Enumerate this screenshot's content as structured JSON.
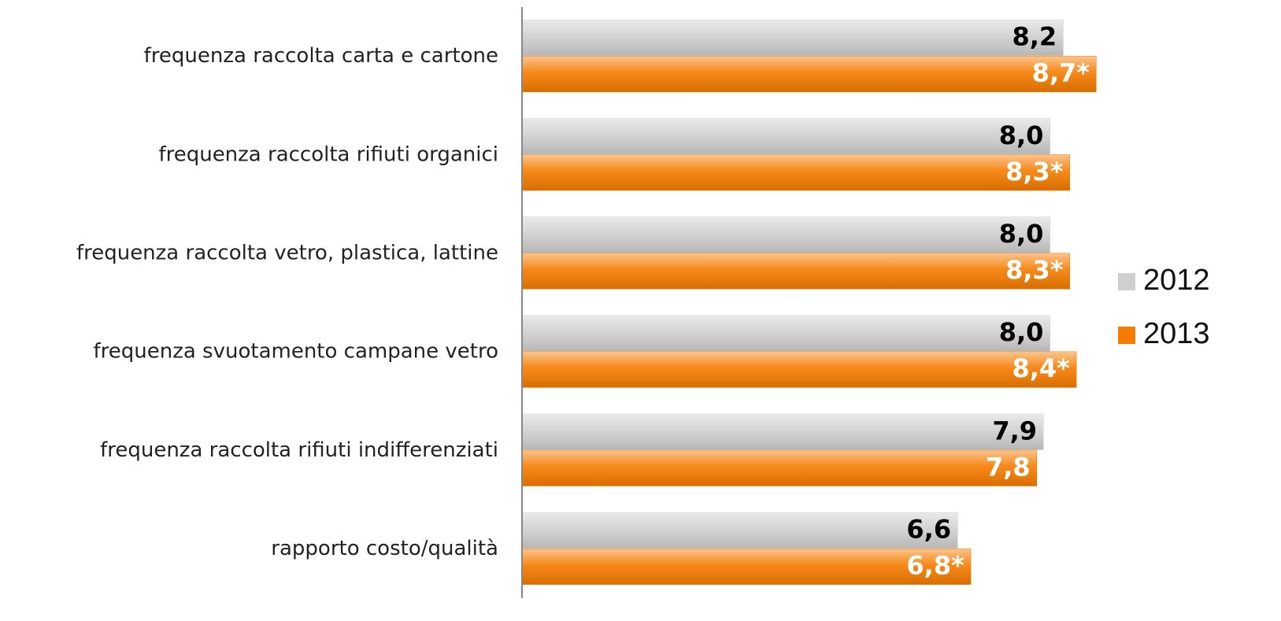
{
  "chart_data": {
    "type": "bar",
    "orientation": "horizontal",
    "categories": [
      "frequenza raccolta carta e cartone",
      "frequenza raccolta rifiuti organici",
      "frequenza raccolta vetro, plastica, lattine",
      "frequenza svuotamento campane vetro",
      "frequenza raccolta rifiuti indifferenziati",
      "rapporto costo/qualità"
    ],
    "series": [
      {
        "name": "2012",
        "color": "#cfcfcf",
        "label_color": "#000000",
        "values": [
          8.2,
          8.0,
          8.0,
          8.0,
          7.9,
          6.6
        ],
        "value_labels": [
          "8,2",
          "8,0",
          "8,0",
          "8,0",
          "7,9",
          "6,6"
        ]
      },
      {
        "name": "2013",
        "color": "#f57c00",
        "label_color": "#ffffff",
        "values": [
          8.7,
          8.3,
          8.3,
          8.4,
          7.8,
          6.8
        ],
        "value_labels": [
          "8,7*",
          "8,3*",
          "8,3*",
          "8,4*",
          "7,8",
          "6,8*"
        ]
      }
    ],
    "xlim": [
      0,
      10
    ],
    "legend": "right"
  }
}
